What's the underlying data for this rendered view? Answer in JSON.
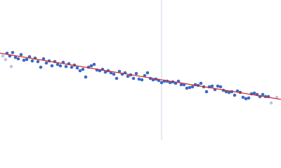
{
  "chart_data": {
    "type": "scatter",
    "xlim": [
      0,
      400
    ],
    "ylim": [
      0,
      200
    ],
    "reference_x": 230,
    "reference_color": "#c8d4e8",
    "fit": {
      "x": [
        0,
        400
      ],
      "values": [
        124,
        58
      ],
      "color": "#d62728"
    },
    "series": [
      {
        "color": "#b8c8e8",
        "x": [
          4,
          8,
          16,
          386,
          394
        ],
        "values": [
          120,
          115,
          105,
          53,
          61
        ]
      },
      {
        "color": "#3a6bc4",
        "x": [
          10,
          14,
          18,
          22,
          26,
          30,
          34,
          38,
          42,
          46,
          50,
          54,
          58,
          62,
          66,
          70,
          74,
          78,
          82,
          86,
          90,
          94,
          98,
          102,
          106,
          110,
          114,
          118,
          122,
          126,
          130,
          134,
          138,
          142,
          146,
          150,
          154,
          158,
          162,
          166,
          170,
          174,
          178,
          182,
          186,
          190,
          194,
          198,
          202,
          206,
          210,
          214,
          218,
          222,
          226,
          230,
          234,
          238,
          242,
          246,
          250,
          254,
          258,
          262,
          266,
          270,
          274,
          278,
          282,
          286,
          290,
          294,
          298,
          302,
          306,
          310,
          314,
          318,
          322,
          326,
          330,
          334,
          338,
          342,
          346,
          350,
          354,
          358,
          362,
          366,
          370,
          374,
          378,
          382
        ],
        "values": [
          124,
          120,
          125,
          118,
          116,
          122,
          114,
          115,
          119,
          113,
          117,
          112,
          104,
          116,
          110,
          113,
          106,
          112,
          108,
          106,
          111,
          105,
          109,
          104,
          107,
          103,
          99,
          101,
          90,
          104,
          106,
          108,
          100,
          99,
          101,
          97,
          99,
          96,
          94,
          88,
          98,
          94,
          96,
          91,
          93,
          88,
          95,
          87,
          86,
          92,
          96,
          88,
          86,
          87,
          85,
          82,
          84,
          84,
          82,
          83,
          81,
          84,
          79,
          79,
          74,
          75,
          76,
          79,
          78,
          81,
          76,
          69,
          76,
          77,
          72,
          77,
          76,
          71,
          69,
          68,
          69,
          64,
          70,
          68,
          61,
          59,
          60,
          66,
          67,
          65,
          62,
          65,
          62,
          62
        ]
      }
    ]
  }
}
